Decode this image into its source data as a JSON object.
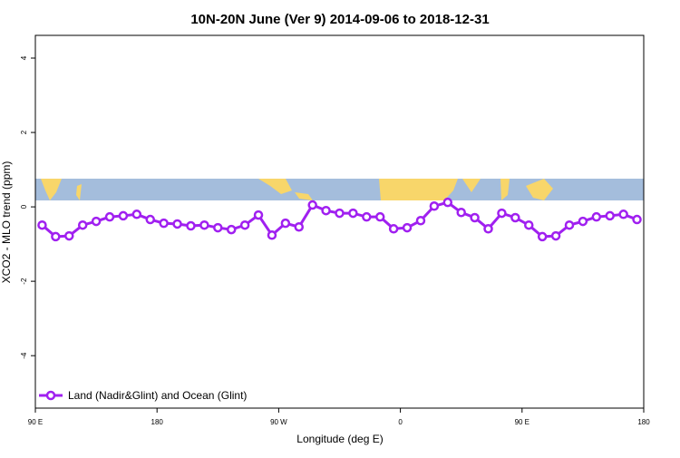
{
  "chart_data": {
    "type": "line",
    "title": "10N-20N June (Ver 9)   2014-09-06 to 2018-12-31",
    "x_label": "Longitude (deg E)",
    "y_label": "XCO2 - MLO trend (ppm)",
    "x": [
      95,
      105,
      115,
      125,
      135,
      145,
      155,
      165,
      175,
      185,
      195,
      205,
      215,
      225,
      235,
      245,
      255,
      265,
      275,
      285,
      295,
      305,
      315,
      325,
      335,
      345,
      355,
      365,
      375,
      385,
      395,
      405,
      415,
      425,
      435,
      445,
      455,
      465,
      475,
      485,
      495,
      505,
      515,
      525,
      535
    ],
    "series": [
      {
        "name": "Land (Nadir&Glint) and Ocean (Glint)",
        "color": "#a020f0",
        "values": [
          -0.49,
          -0.8,
          -0.78,
          -0.49,
          -0.39,
          -0.27,
          -0.24,
          -0.2,
          -0.34,
          -0.44,
          -0.46,
          -0.51,
          -0.49,
          -0.56,
          -0.61,
          -0.49,
          -0.22,
          -0.76,
          -0.44,
          -0.54,
          0.05,
          -0.1,
          -0.17,
          -0.17,
          -0.27,
          -0.27,
          -0.59,
          -0.56,
          -0.37,
          0.02,
          0.12,
          -0.15,
          -0.29,
          -0.59,
          -0.17,
          -0.29,
          -0.49,
          -0.8,
          -0.78,
          -0.49,
          -0.39,
          -0.27,
          -0.24,
          -0.2,
          -0.34
        ]
      }
    ],
    "xlim": [
      90,
      540
    ],
    "xticks": [
      {
        "value": 90,
        "label": "90 E"
      },
      180,
      {
        "value": 270,
        "label": "90 W"
      },
      {
        "value": 360,
        "label": "0"
      },
      {
        "value": 450,
        "label": "90 E"
      },
      {
        "value": 540,
        "label": "180"
      }
    ],
    "ylim": [
      -5.41,
      4.61
    ],
    "yticks": [
      -4,
      -2,
      0,
      2,
      4
    ],
    "legend": "bottom-left"
  }
}
